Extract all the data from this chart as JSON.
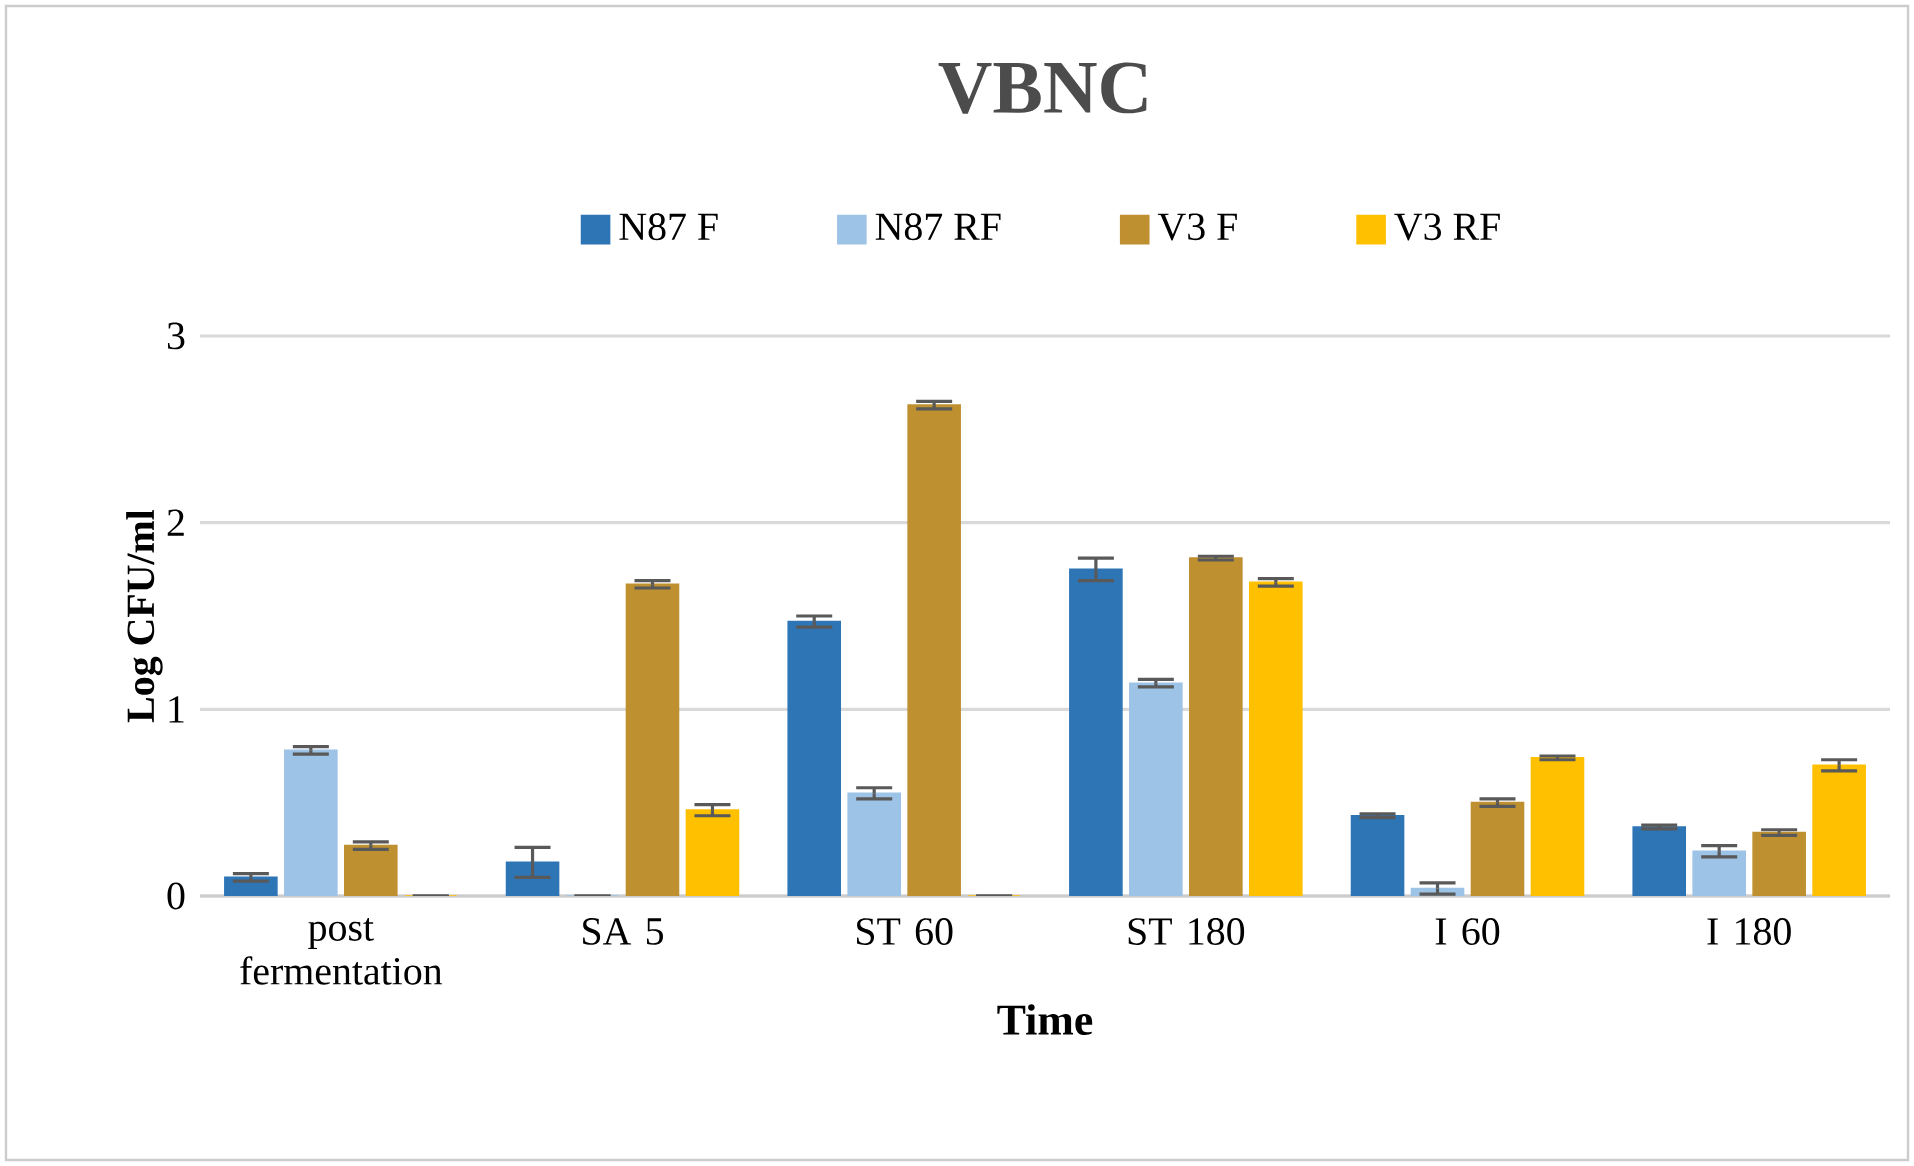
{
  "chart_data": {
    "type": "bar",
    "title": "VBNC",
    "xlabel": "Time",
    "ylabel": "Log CFU/ml",
    "categories": [
      "post fermentation",
      "SA 5",
      "ST 60",
      "ST 180",
      "I 60",
      "I 180"
    ],
    "series": [
      {
        "name": "N87 F",
        "color": "#2e75b6",
        "values": [
          0.1,
          0.18,
          1.47,
          1.75,
          0.43,
          0.37
        ],
        "errors": [
          0.02,
          0.08,
          0.03,
          0.06,
          0.01,
          0.01
        ]
      },
      {
        "name": "N87 RF",
        "color": "#9dc3e6",
        "values": [
          0.78,
          0,
          0.55,
          1.14,
          0.04,
          0.24
        ],
        "errors": [
          0.02,
          0,
          0.03,
          0.02,
          0.03,
          0.03
        ]
      },
      {
        "name": "V3 F",
        "color": "#bf9030",
        "values": [
          0.27,
          1.67,
          2.63,
          1.81,
          0.5,
          0.34
        ],
        "errors": [
          0.02,
          0.02,
          0.02,
          0.01,
          0.02,
          0.015
        ]
      },
      {
        "name": "V3 RF",
        "color": "#ffc000",
        "values": [
          0,
          0.46,
          0,
          1.68,
          0.74,
          0.7
        ],
        "errors": [
          0,
          0.03,
          0,
          0.02,
          0.01,
          0.03
        ]
      }
    ],
    "ylim": [
      0,
      3
    ],
    "yticks": [
      0,
      1,
      2,
      3
    ],
    "grid": "y",
    "legend": "top"
  }
}
